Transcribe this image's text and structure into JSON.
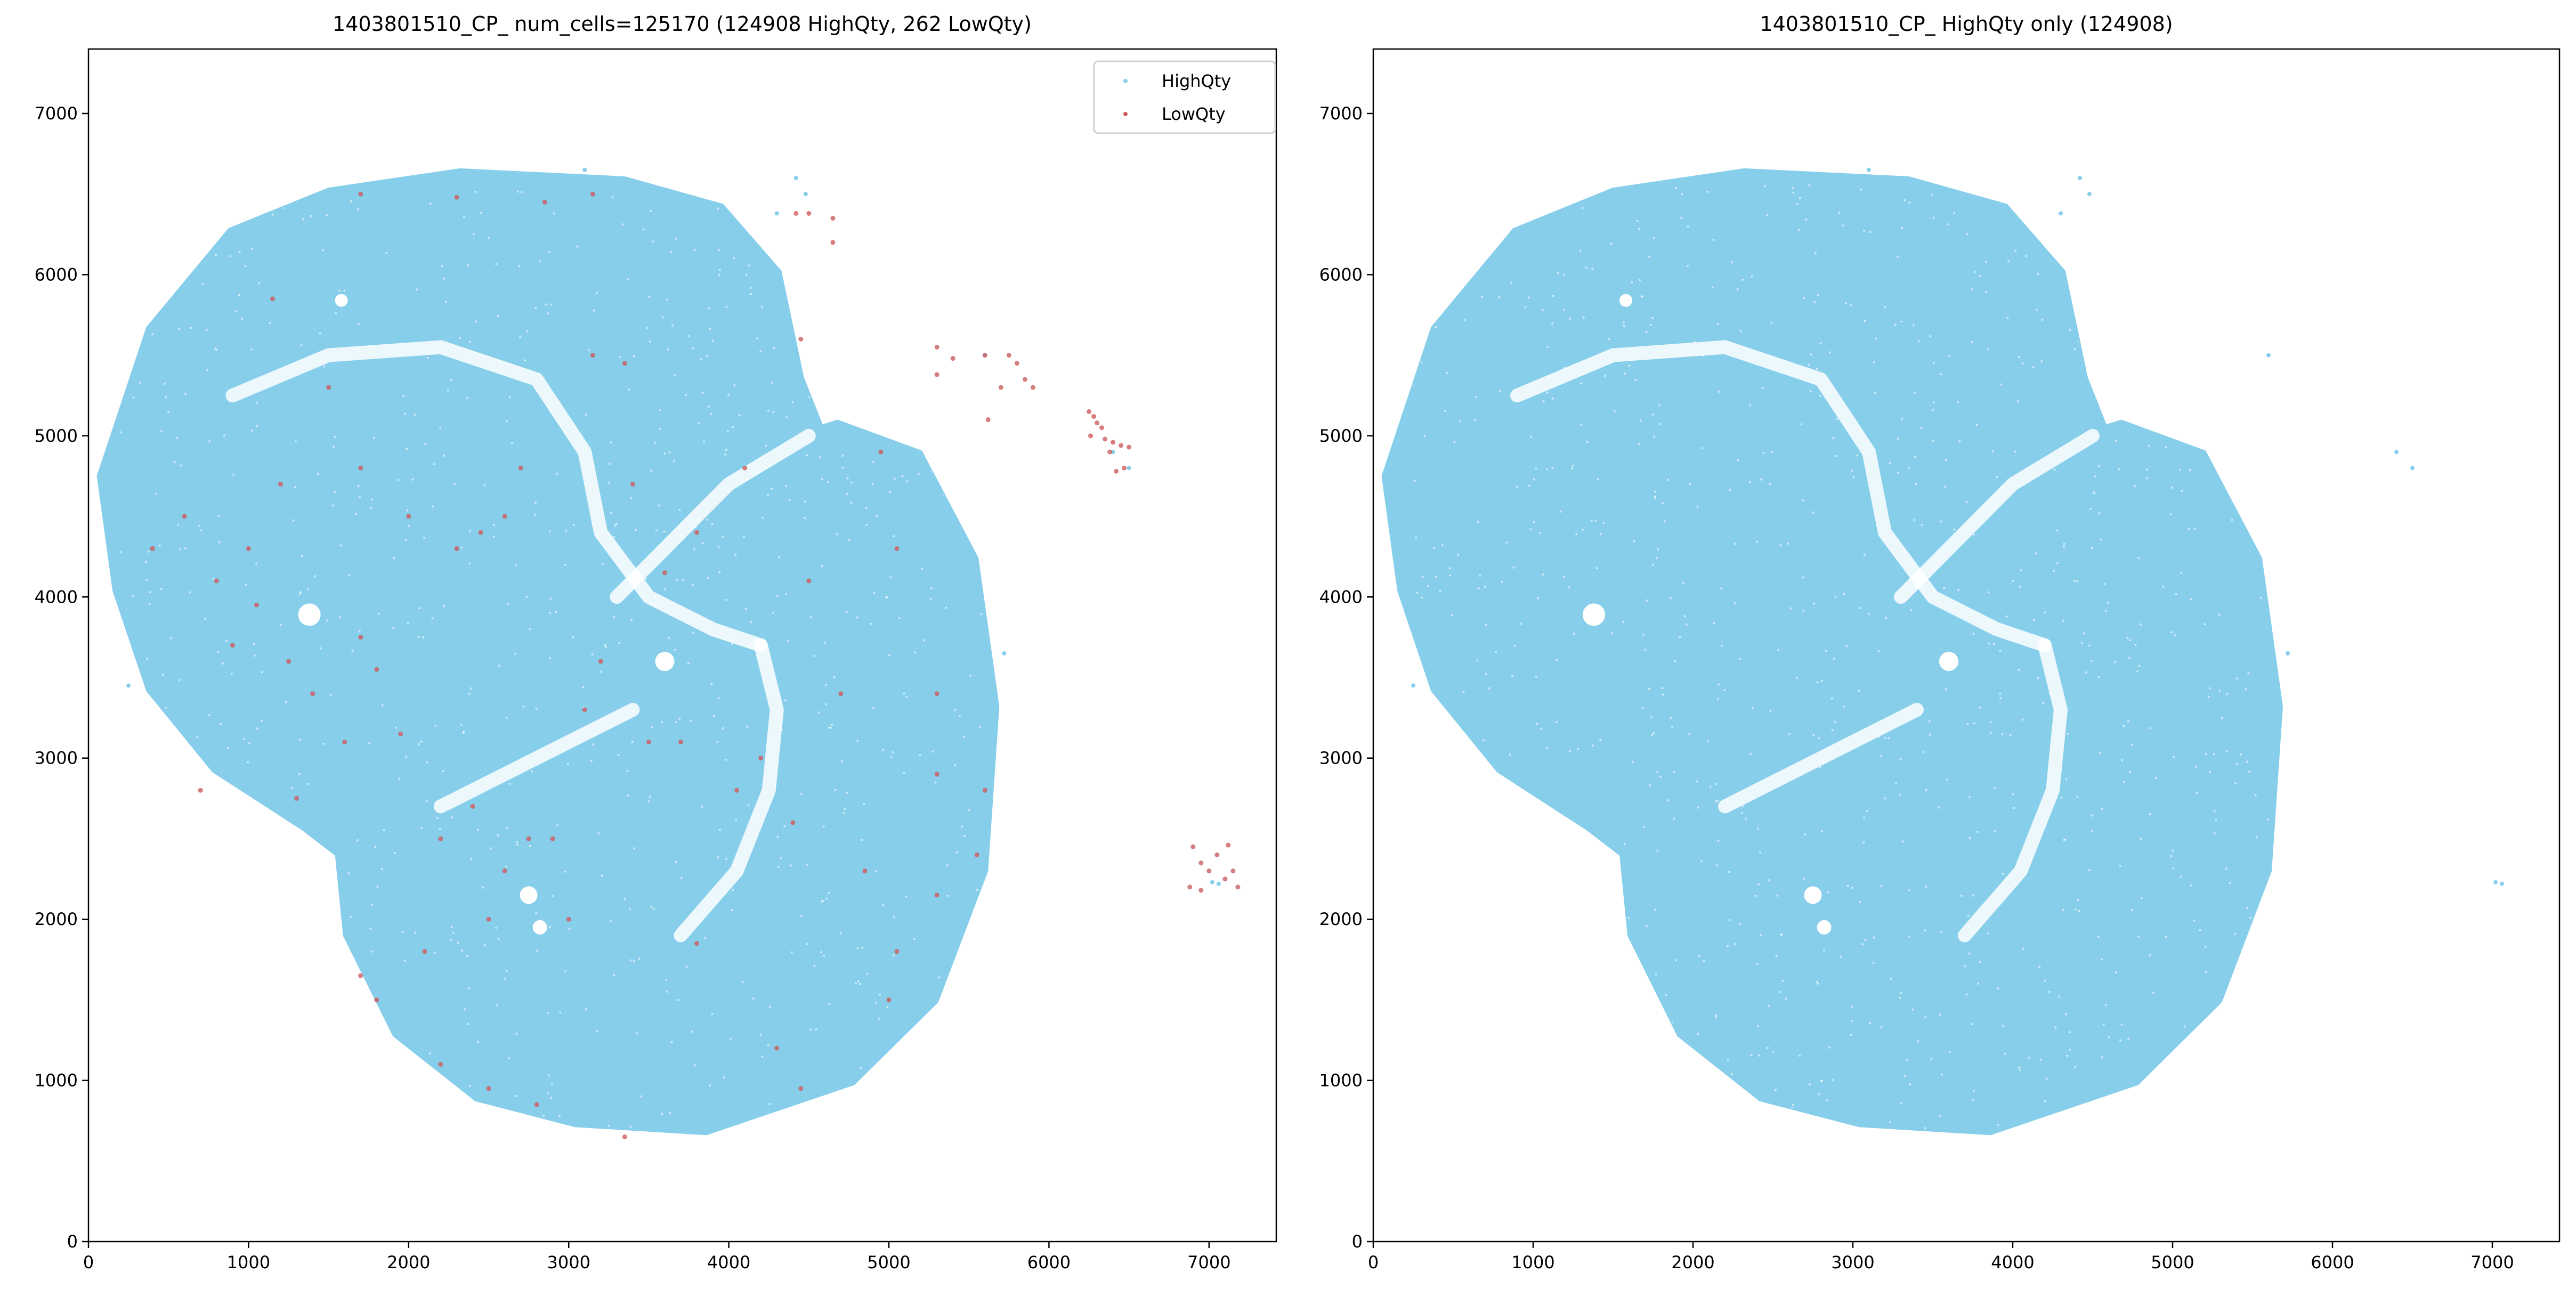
{
  "colors": {
    "high": "#87CEEB",
    "low": "#CD5C5C",
    "axis": "#000000"
  },
  "chart_data": [
    {
      "type": "scatter",
      "title": "1403801510_CP_ num_cells=125170 (124908 HighQty, 262 LowQty)",
      "xlabel": "",
      "ylabel": "",
      "xlim": [
        0,
        7420
      ],
      "ylim": [
        0,
        7400
      ],
      "xticks": [
        "0",
        "1000",
        "2000",
        "3000",
        "4000",
        "5000",
        "6000",
        "7000"
      ],
      "yticks": [
        "0",
        "1000",
        "2000",
        "3000",
        "4000",
        "5000",
        "6000",
        "7000"
      ],
      "grid": false,
      "legend": {
        "placement": "top-right",
        "entries": [
          "HighQty",
          "LowQty"
        ]
      },
      "series": [
        {
          "name": "HighQty",
          "count": 124908,
          "color": "#87CEEB",
          "tissue_outline": [
            [
              62,
              4750
            ],
            [
              370,
              5670
            ],
            [
              880,
              6280
            ],
            [
              1500,
              6530
            ],
            [
              2320,
              6650
            ],
            [
              3350,
              6600
            ],
            [
              3960,
              6430
            ],
            [
              4320,
              6020
            ],
            [
              4460,
              5360
            ],
            [
              4580,
              5060
            ],
            [
              4680,
              5090
            ],
            [
              5200,
              4900
            ],
            [
              5550,
              4240
            ],
            [
              5680,
              3320
            ],
            [
              5610,
              2300
            ],
            [
              5300,
              1490
            ],
            [
              4780,
              980
            ],
            [
              3860,
              670
            ],
            [
              3040,
              720
            ],
            [
              2420,
              880
            ],
            [
              1910,
              1280
            ],
            [
              1600,
              1900
            ],
            [
              1550,
              2400
            ],
            [
              1340,
              2560
            ],
            [
              780,
              2920
            ],
            [
              370,
              3420
            ],
            [
              160,
              4040
            ]
          ],
          "outliers": [
            [
              4300,
              6380
            ],
            [
              4420,
              6600
            ],
            [
              4480,
              6500
            ],
            [
              3100,
              6650
            ],
            [
              5600,
              5500
            ],
            [
              6400,
              4900
            ],
            [
              6500,
              4800
            ],
            [
              7020,
              2230
            ],
            [
              7060,
              2220
            ],
            [
              5720,
              3650
            ],
            [
              250,
              3450
            ]
          ]
        },
        {
          "name": "LowQty",
          "count": 262,
          "color": "#CD5C5C",
          "points": [
            [
              6250,
              5150
            ],
            [
              6280,
              5120
            ],
            [
              6300,
              5080
            ],
            [
              6330,
              5050
            ],
            [
              6260,
              5000
            ],
            [
              6350,
              4980
            ],
            [
              6400,
              4960
            ],
            [
              6450,
              4940
            ],
            [
              6500,
              4930
            ],
            [
              6380,
              4900
            ],
            [
              6420,
              4780
            ],
            [
              6470,
              4800
            ],
            [
              6900,
              2450
            ],
            [
              6950,
              2350
            ],
            [
              7000,
              2300
            ],
            [
              7050,
              2400
            ],
            [
              7100,
              2250
            ],
            [
              7150,
              2300
            ],
            [
              7180,
              2200
            ],
            [
              6880,
              2200
            ],
            [
              6950,
              2180
            ],
            [
              7120,
              2460
            ],
            [
              5300,
              5550
            ],
            [
              5400,
              5480
            ],
            [
              5600,
              5500
            ],
            [
              5750,
              5500
            ],
            [
              5800,
              5450
            ],
            [
              5850,
              5350
            ],
            [
              5900,
              5300
            ],
            [
              5700,
              5300
            ],
            [
              5620,
              5100
            ],
            [
              5300,
              5380
            ],
            [
              4650,
              6350
            ],
            [
              4500,
              6380
            ],
            [
              4420,
              6380
            ],
            [
              4650,
              6200
            ],
            [
              4450,
              5600
            ],
            [
              1150,
              5850
            ],
            [
              1700,
              6500
            ],
            [
              2300,
              6480
            ],
            [
              2850,
              6450
            ],
            [
              3150,
              6500
            ],
            [
              3350,
              5450
            ],
            [
              3150,
              5500
            ],
            [
              2700,
              4800
            ],
            [
              2600,
              4500
            ],
            [
              2450,
              4400
            ],
            [
              2300,
              4300
            ],
            [
              2000,
              4500
            ],
            [
              1700,
              4800
            ],
            [
              1500,
              5300
            ],
            [
              1200,
              4700
            ],
            [
              1000,
              4300
            ],
            [
              800,
              4100
            ],
            [
              1050,
              3950
            ],
            [
              1250,
              3600
            ],
            [
              1400,
              3400
            ],
            [
              1700,
              3750
            ],
            [
              1800,
              3550
            ],
            [
              1950,
              3150
            ],
            [
              1600,
              3100
            ],
            [
              1300,
              2750
            ],
            [
              700,
              2800
            ],
            [
              2200,
              2500
            ],
            [
              2400,
              2700
            ],
            [
              2750,
              2500
            ],
            [
              2900,
              2500
            ],
            [
              3200,
              3600
            ],
            [
              3500,
              3100
            ],
            [
              3700,
              3100
            ],
            [
              4050,
              2800
            ],
            [
              4200,
              3000
            ],
            [
              4400,
              2600
            ],
            [
              4850,
              2300
            ],
            [
              5300,
              2150
            ],
            [
              5550,
              2400
            ],
            [
              5600,
              2800
            ],
            [
              5300,
              2900
            ],
            [
              5300,
              3400
            ],
            [
              5050,
              4300
            ],
            [
              4950,
              4900
            ],
            [
              4100,
              4800
            ],
            [
              3800,
              4400
            ],
            [
              3400,
              4700
            ],
            [
              2500,
              2000
            ],
            [
              2100,
              1800
            ],
            [
              1800,
              1500
            ],
            [
              1700,
              1650
            ],
            [
              2200,
              1100
            ],
            [
              2500,
              950
            ],
            [
              2800,
              850
            ],
            [
              3350,
              650
            ],
            [
              3800,
              1850
            ],
            [
              4300,
              1200
            ],
            [
              4450,
              950
            ],
            [
              5000,
              1500
            ],
            [
              5050,
              1800
            ],
            [
              3000,
              2000
            ],
            [
              2600,
              2300
            ],
            [
              4700,
              3400
            ],
            [
              4500,
              4100
            ],
            [
              3600,
              4150
            ],
            [
              3100,
              3300
            ],
            [
              900,
              3700
            ],
            [
              600,
              4500
            ],
            [
              400,
              4300
            ]
          ]
        }
      ]
    },
    {
      "type": "scatter",
      "title": "1403801510_CP_ HighQty only (124908)",
      "xlabel": "",
      "ylabel": "",
      "xlim": [
        0,
        7420
      ],
      "ylim": [
        0,
        7400
      ],
      "xticks": [
        "0",
        "1000",
        "2000",
        "3000",
        "4000",
        "5000",
        "6000",
        "7000"
      ],
      "yticks": [
        "0",
        "1000",
        "2000",
        "3000",
        "4000",
        "5000",
        "6000",
        "7000"
      ],
      "grid": false,
      "series": [
        {
          "name": "HighQty",
          "count": 124908,
          "color": "#87CEEB"
        }
      ]
    }
  ]
}
